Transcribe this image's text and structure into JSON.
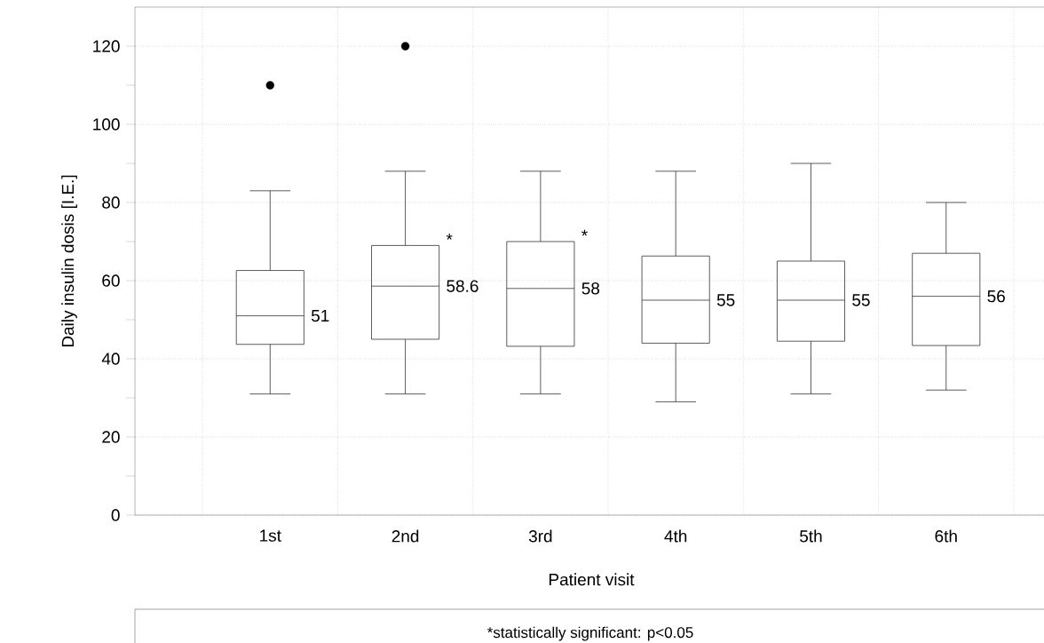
{
  "chart_data": {
    "type": "box",
    "xlabel": "Patient visit",
    "ylabel": "Daily insulin dosis [I.E.]",
    "categories": [
      "1st",
      "2nd",
      "3rd",
      "4th",
      "5th",
      "6th"
    ],
    "boxes": [
      {
        "low": 31,
        "q1": 43.7,
        "median": 51,
        "q3": 62.6,
        "high": 83,
        "outliers": [
          110
        ]
      },
      {
        "low": 31,
        "q1": 45,
        "median": 58.6,
        "q3": 69,
        "high": 88,
        "outliers": [
          120
        ]
      },
      {
        "low": 31,
        "q1": 43.2,
        "median": 58,
        "q3": 70,
        "high": 88
      },
      {
        "low": 29,
        "q1": 44,
        "median": 55,
        "q3": 66.3,
        "high": 88
      },
      {
        "low": 31,
        "q1": 44.5,
        "median": 55,
        "q3": 65,
        "high": 90
      },
      {
        "low": 32,
        "q1": 43.4,
        "median": 56,
        "q3": 67,
        "high": 80
      }
    ],
    "ylim": [
      0,
      130
    ],
    "yticks": [
      0,
      {
        "value": 10,
        "label": null
      },
      20,
      {
        "value": 30,
        "label": null
      },
      40,
      {
        "value": 50,
        "label": null
      },
      60,
      {
        "value": 70,
        "label": null
      },
      80,
      {
        "value": 90,
        "label": null
      },
      100,
      {
        "value": 110,
        "label": null
      },
      120
    ],
    "grid": true,
    "value_labels": [
      "51",
      "58.6",
      "58",
      "55",
      "55",
      "56"
    ],
    "annotations": [
      {
        "text": "*",
        "x": "2nd",
        "y": 69
      },
      {
        "text": "*",
        "x": "3rd",
        "y": 70
      },
      "*statistically significant: p<0.05"
    ]
  }
}
